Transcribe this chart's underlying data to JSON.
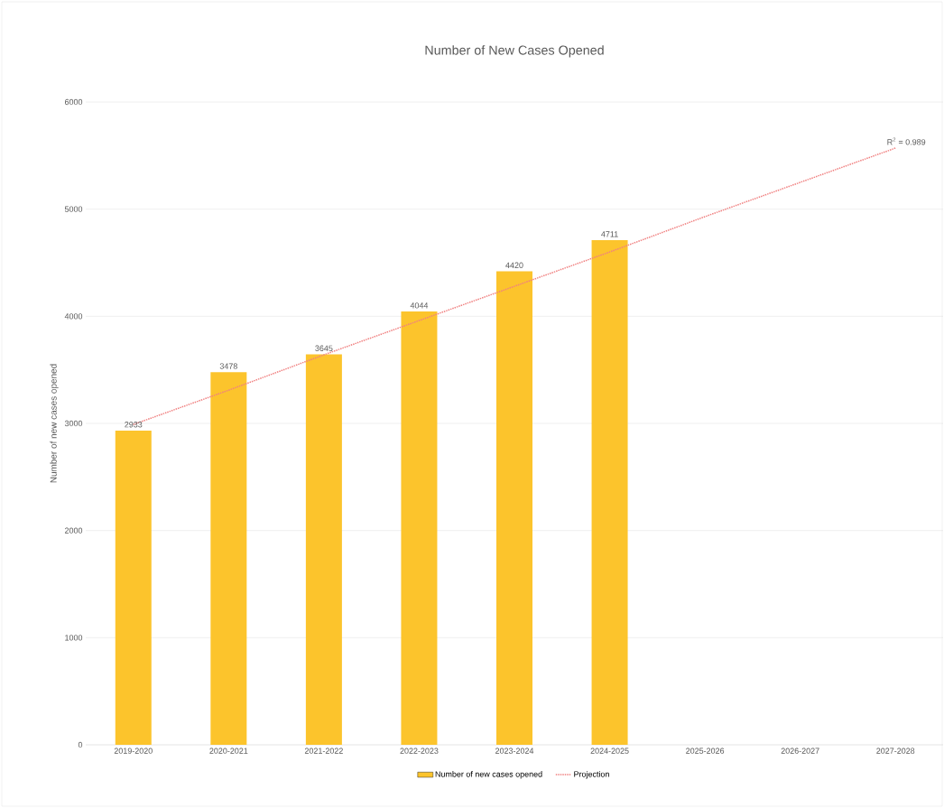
{
  "chart_data": {
    "type": "bar",
    "title": "Number of New Cases Opened",
    "ylabel": "Number of new cases opened",
    "categories": [
      "2019-2020",
      "2020-2021",
      "2021-2022",
      "2022-2023",
      "2023-2024",
      "2024-2025",
      "2025-2026",
      "2026-2027",
      "2027-2028"
    ],
    "series": [
      {
        "name": "Number of new cases opened",
        "color": "#fcc42c",
        "values": [
          2933,
          3478,
          3645,
          4044,
          4420,
          4711,
          null,
          null,
          null
        ],
        "data_labels": true
      },
      {
        "name": "Projection",
        "type": "line",
        "color": "#f08080",
        "line_style": "dotted",
        "values": [
          2990,
          3310,
          3640,
          3960,
          4280,
          4600,
          4930,
          5250,
          5570
        ]
      }
    ],
    "ylim": [
      0,
      6000
    ],
    "yticks": [
      0,
      1000,
      2000,
      3000,
      4000,
      5000,
      6000
    ],
    "grid": "y",
    "legend": "bottom",
    "annotations": [
      "R$^{2}$ = 0.989"
    ]
  }
}
